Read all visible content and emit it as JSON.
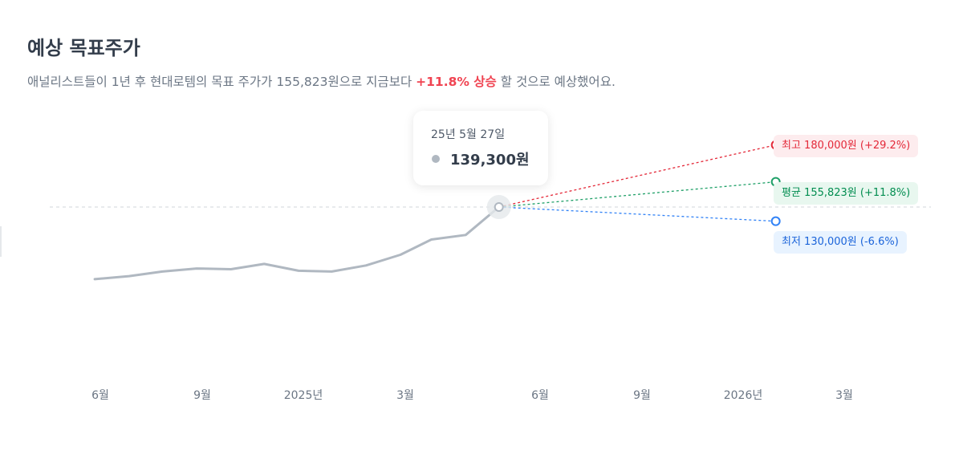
{
  "header": {
    "title": "예상 목표주가",
    "desc_prefix": "애널리스트들이 1년 후 현대로템의 목표 주가가 155,823원으로 지금보다 ",
    "desc_highlight": "+11.8% 상승",
    "desc_suffix": " 할 것으로 예상했어요."
  },
  "tooltip": {
    "date": "25년 5월 27일",
    "value": "139,300원"
  },
  "targets": {
    "high_label": "최고 180,000원 (+29.2%)",
    "avg_label": "평균 155,823원 (+11.8%)",
    "low_label": "최저 130,000원 (-6.6%)"
  },
  "x_ticks": [
    "6월",
    "9월",
    "2025년",
    "3월",
    "6월",
    "9월",
    "2026년",
    "3월"
  ],
  "colors": {
    "history_line": "#b0b8c1",
    "high": "#e42939",
    "avg": "#1fa068",
    "low": "#3182f6",
    "baseline": "#d1d6db"
  },
  "chart_data": {
    "type": "line",
    "title": "예상 목표주가",
    "xlabel": "",
    "ylabel": "",
    "x_tick_labels": [
      "6월",
      "9월",
      "2025년",
      "3월",
      "6월",
      "9월",
      "2026년",
      "3월"
    ],
    "grid": false,
    "series": [
      {
        "x": [
          "2024-05-27",
          "2024-06-27",
          "2024-07-27",
          "2024-08-27",
          "2024-09-27",
          "2024-10-27",
          "2024-11-27",
          "2024-12-27",
          "2025-01-27",
          "2025-02-27",
          "2025-03-27",
          "2025-04-27",
          "2025-05-27"
        ],
        "values": [
          92000,
          94000,
          97000,
          99000,
          98500,
          102000,
          97500,
          97000,
          101000,
          108000,
          118000,
          121000,
          139300
        ]
      },
      {
        "name": "최고",
        "x": [
          "2025-05-27",
          "2026-02-01"
        ],
        "values": [
          139300,
          180000
        ]
      },
      {
        "name": "평균",
        "x": [
          "2025-05-27",
          "2026-02-01"
        ],
        "values": [
          139300,
          155823
        ]
      },
      {
        "name": "최저",
        "x": [
          "2025-05-27",
          "2026-02-01"
        ],
        "values": [
          139300,
          130000
        ]
      }
    ],
    "current_price": 139300
  }
}
